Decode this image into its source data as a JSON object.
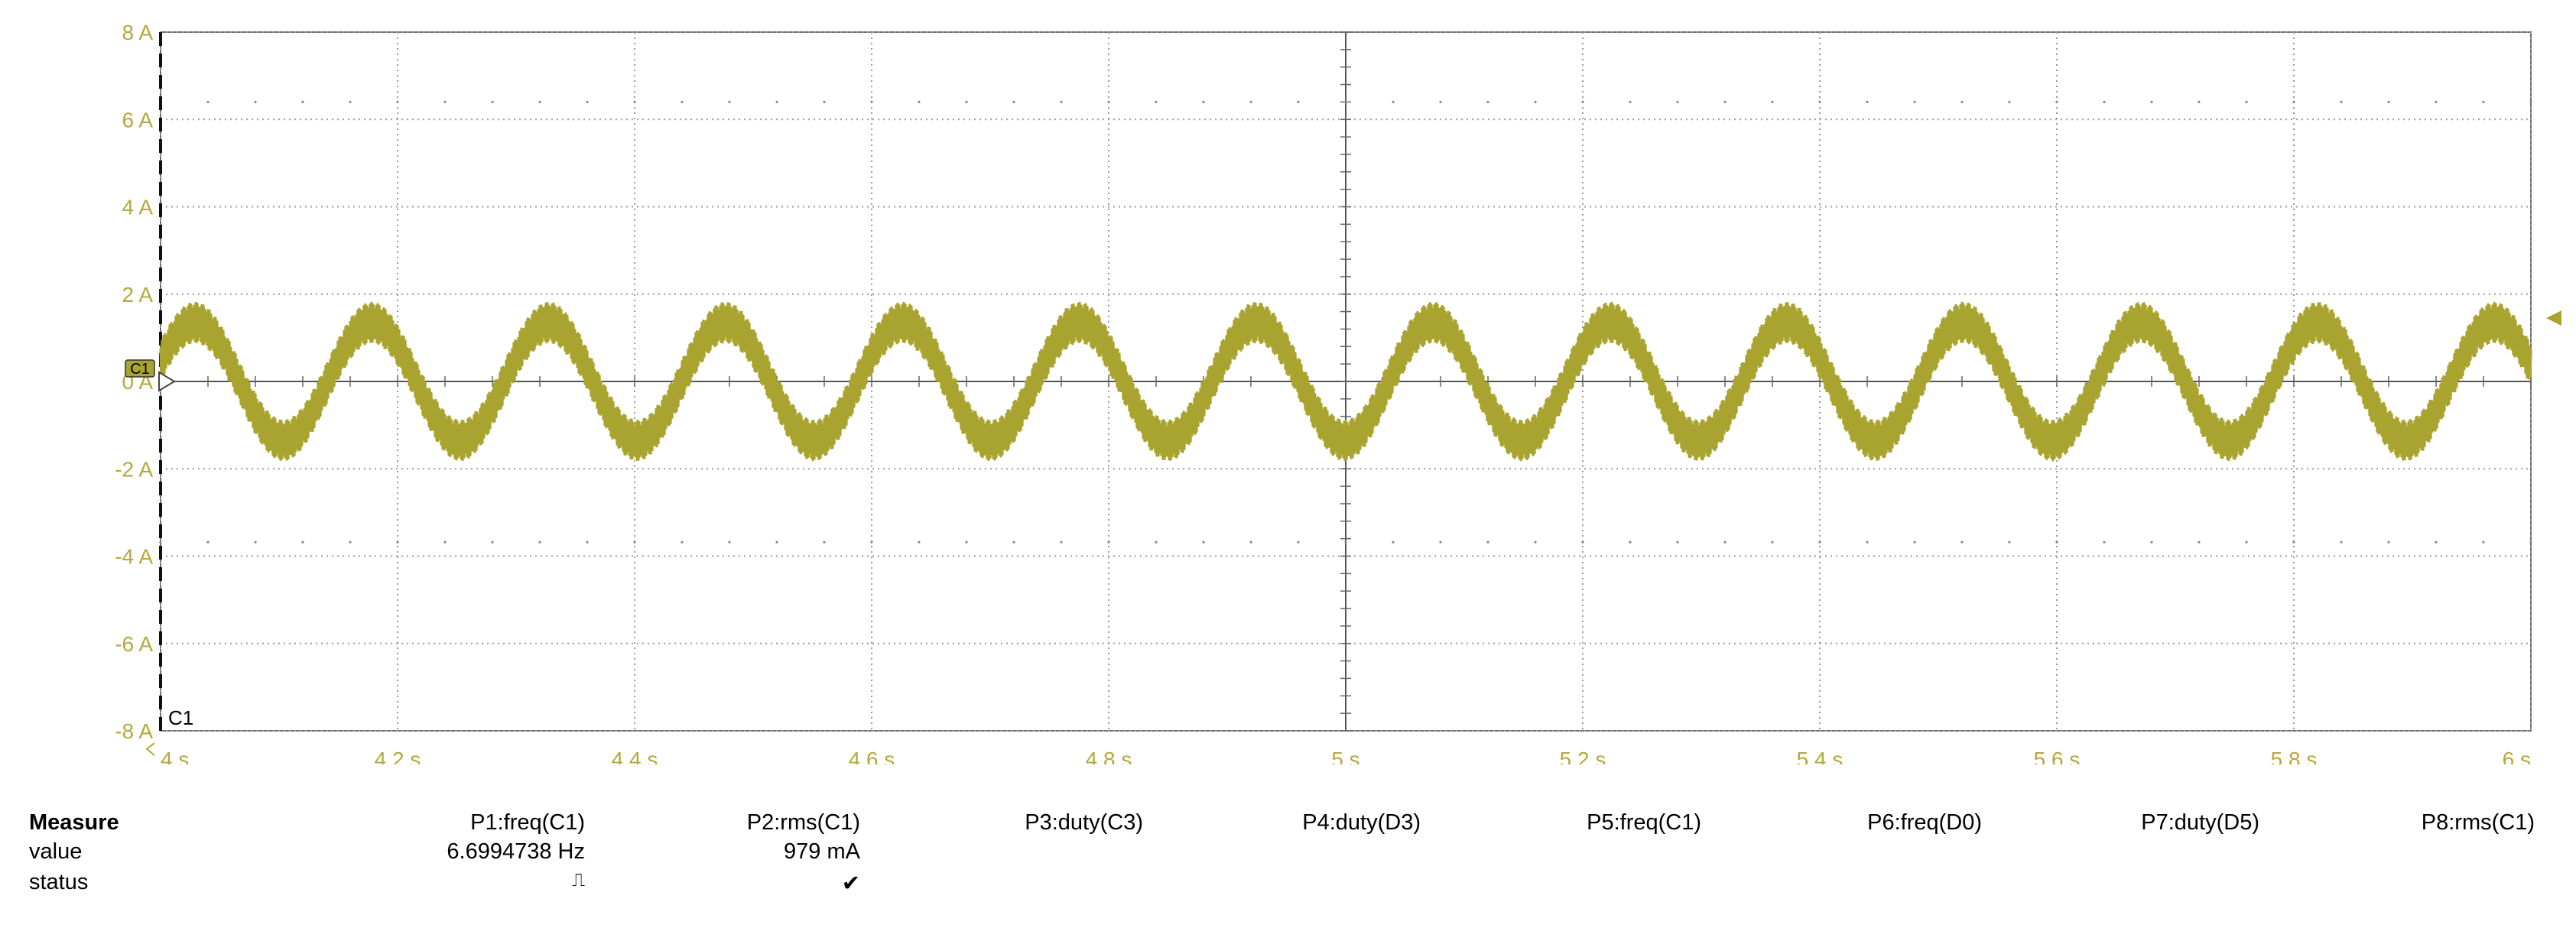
{
  "chart_data": {
    "type": "line",
    "title": "",
    "channel_label": "C1",
    "trace_color": "#a9a42f",
    "axis_label_color": "#b5a83a",
    "grid": true,
    "xlim": [
      4.0,
      6.0
    ],
    "ylim": [
      -8,
      8
    ],
    "x_unit": "s",
    "y_unit": "A",
    "x_ticks": [
      "4 s",
      "4.2 s",
      "4.4 s",
      "4.6 s",
      "4.8 s",
      "5 s",
      "5.2 s",
      "5.4 s",
      "5.6 s",
      "5.8 s",
      "6 s"
    ],
    "y_ticks": [
      "8 A",
      "6 A",
      "4 A",
      "2 A",
      "0 A",
      "-2 A",
      "-4 A",
      "-6 A",
      "-8 A"
    ],
    "signal": {
      "shape": "noisy sine",
      "frequency_hz": 6.7,
      "fundamental_amplitude_A": 1.35,
      "noise_amplitude_A": 0.45,
      "phase_deg": 20
    }
  },
  "measure": {
    "title": "Measure",
    "row_labels": {
      "value": "value",
      "status": "status"
    },
    "columns": [
      {
        "header": "P1:freq(C1)",
        "value": "6.6994738 Hz",
        "status": "⎍"
      },
      {
        "header": "P2:rms(C1)",
        "value": "979 mA",
        "status": "✔"
      },
      {
        "header": "P3:duty(C3)",
        "value": "",
        "status": ""
      },
      {
        "header": "P4:duty(D3)",
        "value": "",
        "status": ""
      },
      {
        "header": "P5:freq(C1)",
        "value": "",
        "status": ""
      },
      {
        "header": "P6:freq(D0)",
        "value": "",
        "status": ""
      },
      {
        "header": "P7:duty(D5)",
        "value": "",
        "status": ""
      },
      {
        "header": "P8:rms(C1)",
        "value": "",
        "status": ""
      }
    ]
  }
}
